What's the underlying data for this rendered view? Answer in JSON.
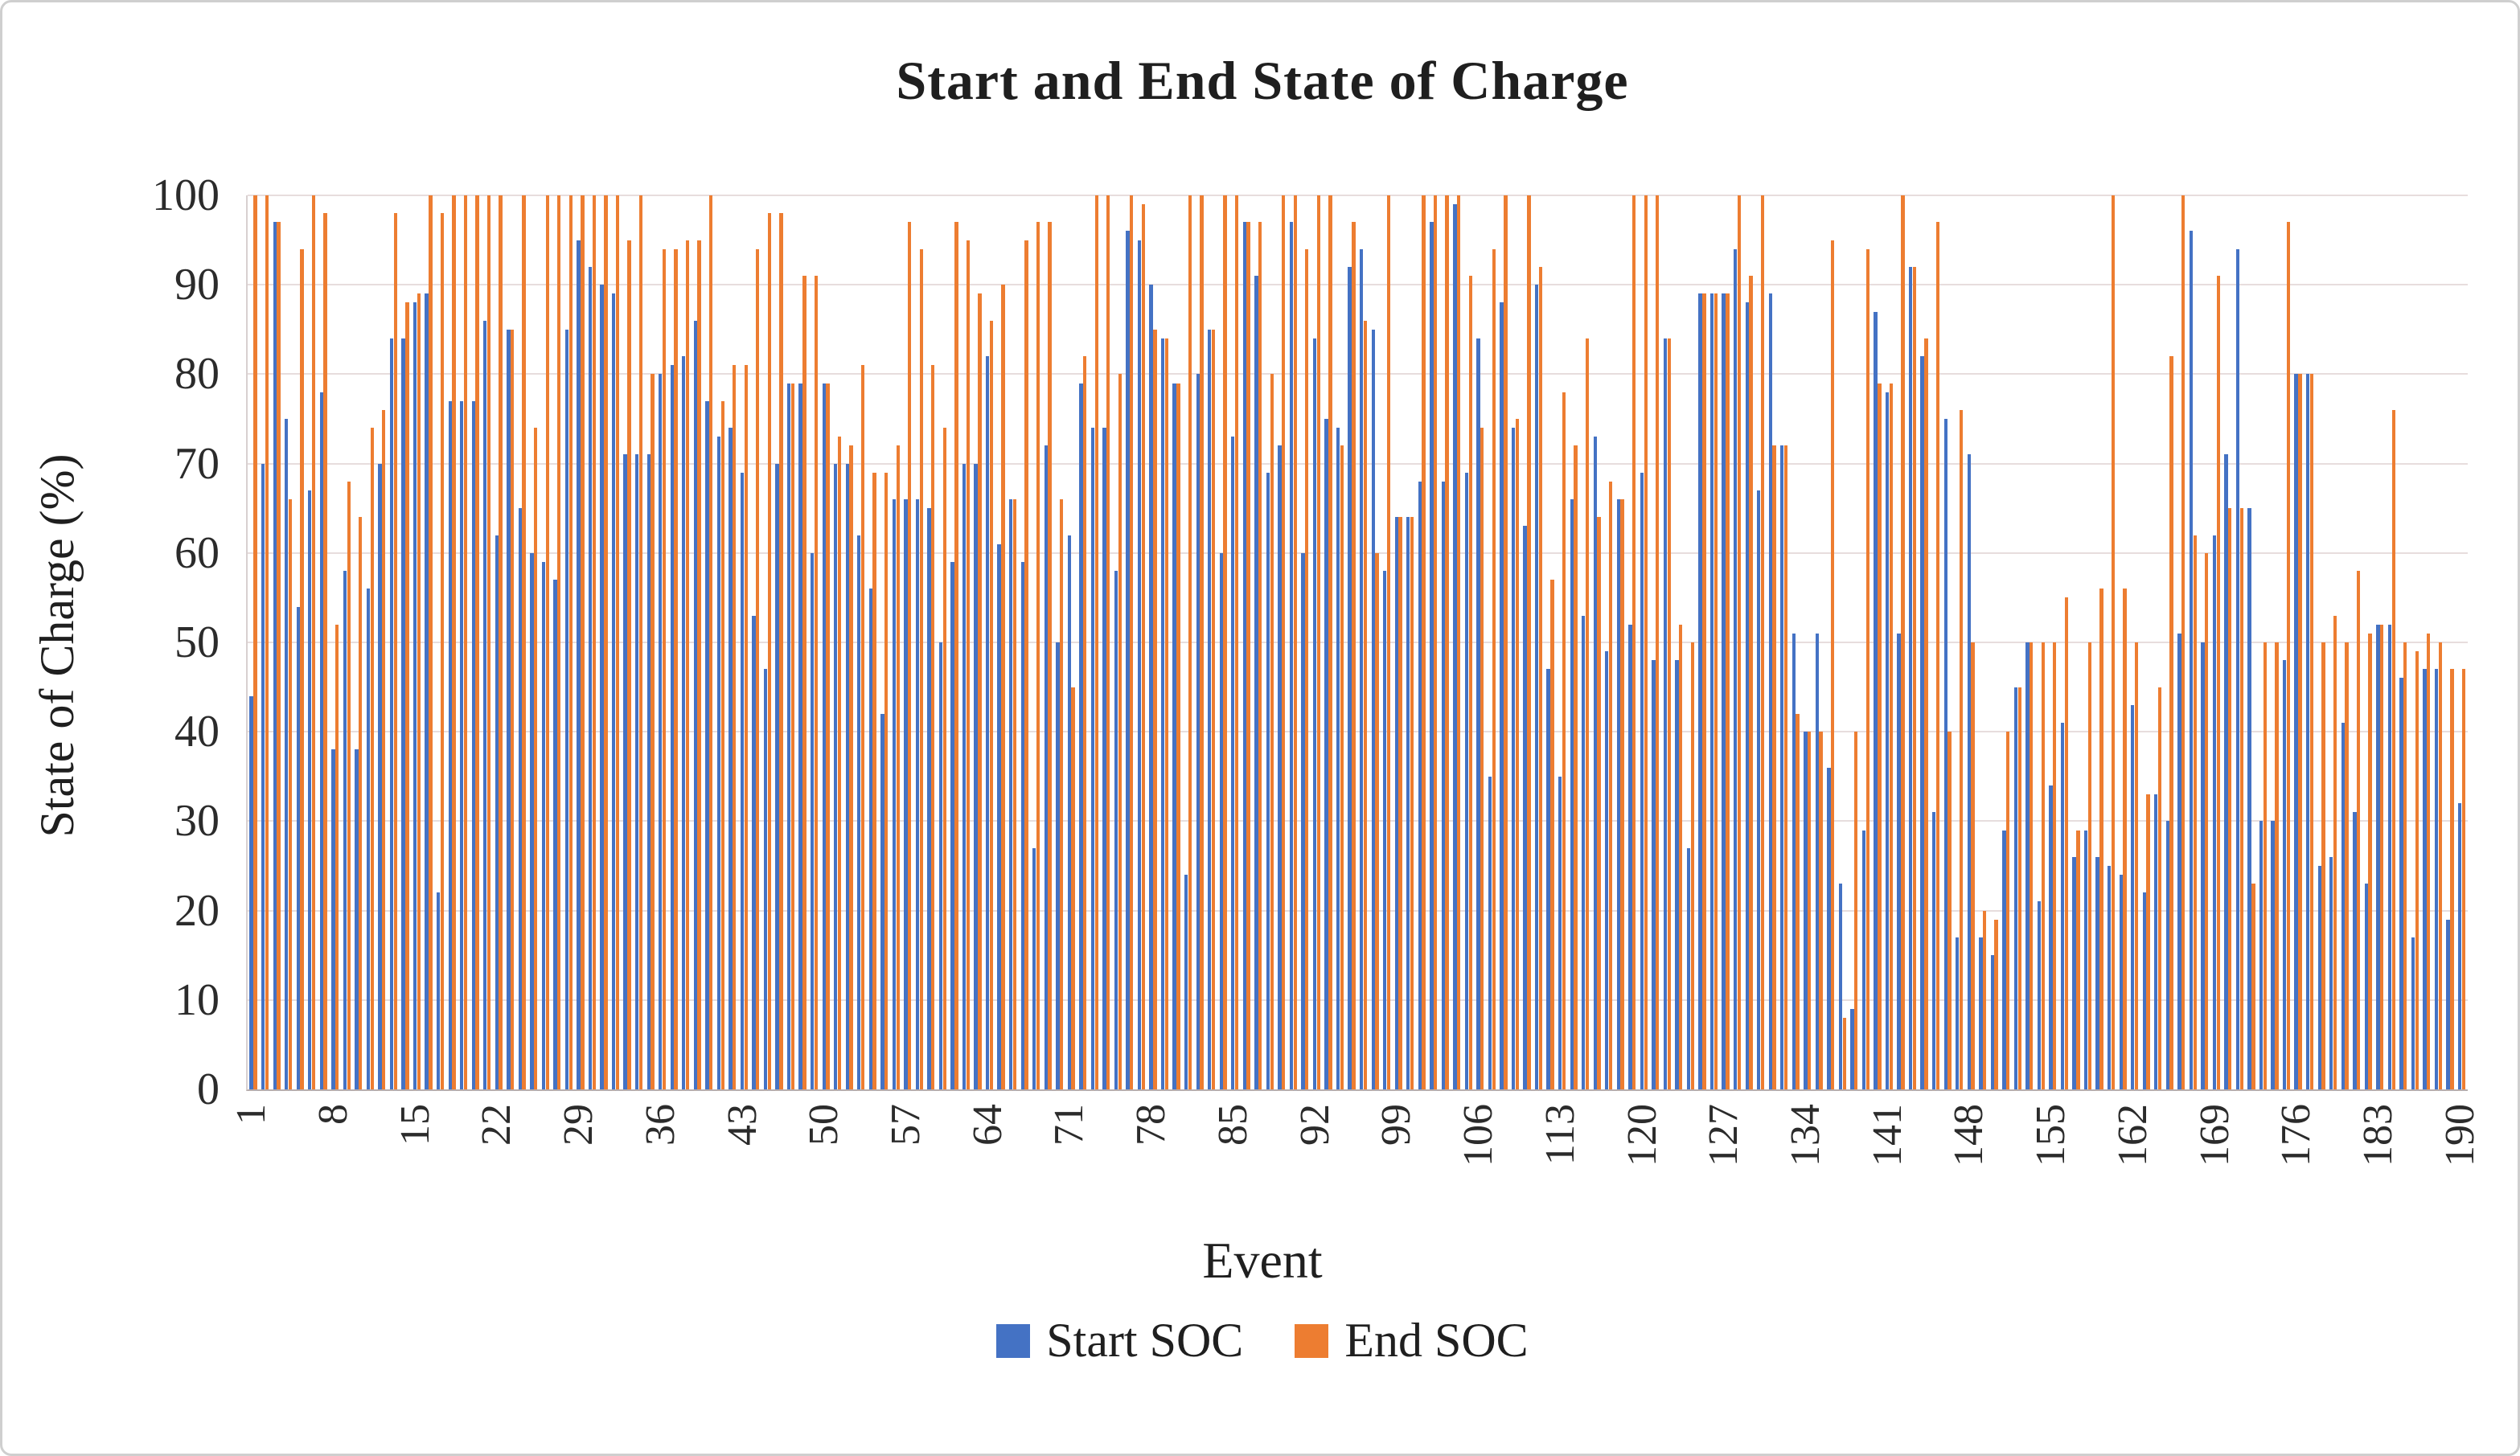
{
  "figure": {
    "title": "Start and End State of Charge",
    "x_axis_title": "Event",
    "y_axis_title": "State of Charge (%)"
  },
  "legend": {
    "items": [
      {
        "label": "Start SOC",
        "color": "#4472C4"
      },
      {
        "label": "End SOC",
        "color": "#ED7D31"
      }
    ],
    "position": "bottom"
  },
  "chart_data": {
    "type": "bar",
    "title": "Start and End State of Charge",
    "xlabel": "Event",
    "ylabel": "State of Charge (%)",
    "ylim": [
      0,
      100
    ],
    "x_range": [
      1,
      190
    ],
    "grid": true,
    "legend_position": "bottom",
    "y_ticks": [
      0,
      10,
      20,
      30,
      40,
      50,
      60,
      70,
      80,
      90,
      100
    ],
    "x_tick_labels": [
      1,
      8,
      15,
      22,
      29,
      36,
      43,
      50,
      57,
      64,
      71,
      78,
      85,
      92,
      99,
      106,
      113,
      120,
      127,
      134,
      141,
      148,
      155,
      162,
      169,
      176,
      183,
      190
    ],
    "series": [
      {
        "name": "Start SOC",
        "color": "#4472C4",
        "values": [
          44,
          70,
          97,
          75,
          54,
          67,
          78,
          38,
          58,
          38,
          56,
          70,
          84,
          84,
          88,
          89,
          22,
          77,
          77,
          77,
          86,
          62,
          85,
          65,
          60,
          59,
          57,
          85,
          95,
          92,
          90,
          89,
          71,
          71,
          71,
          80,
          81,
          82,
          86,
          77,
          73,
          74,
          69,
          53,
          47,
          70,
          79,
          79,
          60,
          79,
          70,
          70,
          62,
          56,
          42,
          66,
          66,
          66,
          65,
          50,
          59,
          70,
          70,
          82,
          61,
          66,
          59,
          27,
          72,
          50,
          62,
          79,
          74,
          74,
          58,
          96,
          95,
          90,
          84,
          79,
          24,
          80,
          85,
          60,
          73,
          97,
          91,
          69,
          72,
          97,
          60,
          84,
          75,
          74,
          92,
          94,
          85,
          58,
          64,
          64,
          68,
          97,
          68,
          99,
          69,
          84,
          35,
          88,
          74,
          63,
          90,
          47,
          35,
          66,
          53,
          73,
          49,
          66,
          52,
          69,
          48,
          84,
          48,
          27,
          89,
          89,
          89,
          94,
          88,
          67,
          89,
          72,
          51,
          40,
          51,
          36,
          23,
          9,
          29,
          87,
          78,
          51,
          92,
          82,
          31,
          75,
          17,
          71,
          17,
          15,
          29,
          45,
          50,
          21,
          34,
          41,
          26,
          29,
          26,
          25,
          24,
          43,
          22,
          33,
          30,
          51,
          96,
          50,
          62,
          71,
          94,
          65,
          30,
          30,
          48,
          80,
          80,
          25,
          26,
          41,
          31,
          23,
          52,
          52,
          46,
          17,
          47,
          47,
          19,
          32
        ]
      },
      {
        "name": "End SOC",
        "color": "#ED7D31",
        "values": [
          100,
          100,
          97,
          66,
          94,
          100,
          98,
          52,
          68,
          64,
          74,
          76,
          98,
          88,
          89,
          100,
          98,
          100,
          100,
          100,
          100,
          100,
          85,
          100,
          74,
          100,
          100,
          100,
          100,
          100,
          100,
          100,
          95,
          100,
          80,
          94,
          94,
          95,
          95,
          100,
          77,
          81,
          81,
          94,
          98,
          98,
          79,
          91,
          91,
          79,
          73,
          72,
          81,
          69,
          69,
          72,
          97,
          94,
          81,
          74,
          97,
          95,
          89,
          86,
          90,
          66,
          95,
          97,
          97,
          66,
          45,
          82,
          100,
          100,
          80,
          100,
          99,
          85,
          84,
          79,
          100,
          100,
          85,
          100,
          100,
          97,
          97,
          80,
          100,
          100,
          94,
          100,
          100,
          72,
          97,
          86,
          60,
          100,
          64,
          64,
          100,
          100,
          100,
          100,
          91,
          74,
          94,
          100,
          75,
          100,
          92,
          57,
          78,
          72,
          84,
          64,
          68,
          66,
          100,
          100,
          100,
          84,
          52,
          50,
          89,
          89,
          89,
          100,
          91,
          100,
          72,
          72,
          42,
          40,
          40,
          95,
          8,
          40,
          94,
          79,
          79,
          100,
          92,
          84,
          97,
          40,
          76,
          50,
          20,
          19,
          40,
          45,
          50,
          50,
          50,
          55,
          29,
          50,
          56,
          100,
          56,
          50,
          33,
          45,
          82,
          100,
          62,
          60,
          91,
          65,
          65,
          23,
          50,
          50,
          97,
          80,
          80,
          50,
          53,
          50,
          58,
          51,
          52,
          76,
          50,
          49,
          51,
          50,
          47,
          47
        ]
      }
    ]
  }
}
